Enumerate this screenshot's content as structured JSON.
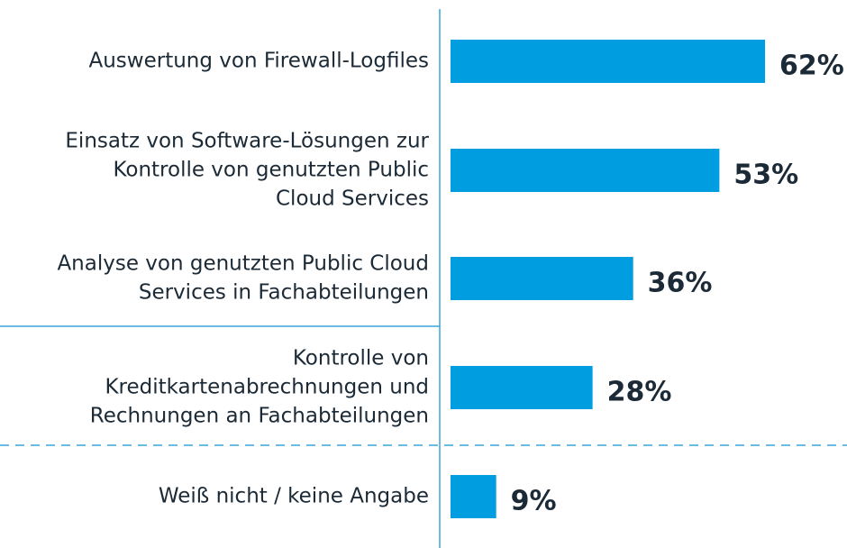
{
  "chart_data": {
    "type": "bar",
    "orientation": "horizontal",
    "categories": [
      [
        "Auswertung von Firewall-Logfiles"
      ],
      [
        "Einsatz von Software-Lösungen zur",
        "Kontrolle von genutzten Public",
        "Cloud Services"
      ],
      [
        "Analyse von genutzten Public Cloud",
        "Services in Fachabteilungen"
      ],
      [
        "Kontrolle von",
        "Kreditkartenabrechnungen und",
        "Rechnungen an Fachabteilungen"
      ],
      [
        "Weiß nicht / keine Angabe"
      ]
    ],
    "values": [
      62,
      53,
      36,
      28,
      9
    ],
    "value_labels": [
      "62%",
      "53%",
      "36%",
      "28%",
      "9%"
    ],
    "color": "#009ee0",
    "xlim": [
      0,
      100
    ]
  }
}
